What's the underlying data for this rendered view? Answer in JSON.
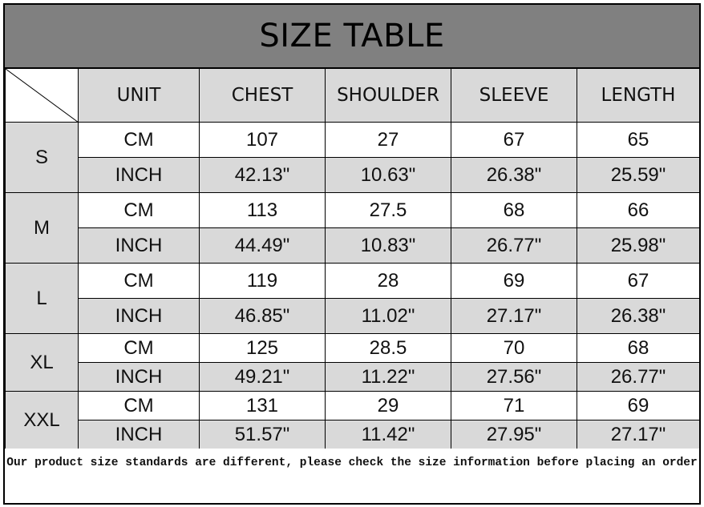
{
  "title": "SIZE TABLE",
  "headers": [
    "UNIT",
    "CHEST",
    "SHOULDER",
    "SLEEVE",
    "LENGTH"
  ],
  "sizes": [
    {
      "size": "S",
      "rows": [
        {
          "unit": "CM",
          "values": [
            "107",
            "27",
            "67",
            "65"
          ]
        },
        {
          "unit": "INCH",
          "values": [
            "42.13\"",
            "10.63\"",
            "26.38\"",
            "25.59\""
          ]
        }
      ]
    },
    {
      "size": "M",
      "rows": [
        {
          "unit": "CM",
          "values": [
            "113",
            "27.5",
            "68",
            "66"
          ]
        },
        {
          "unit": "INCH",
          "values": [
            "44.49\"",
            "10.83\"",
            "26.77\"",
            "25.98\""
          ]
        }
      ]
    },
    {
      "size": "L",
      "rows": [
        {
          "unit": "CM",
          "values": [
            "119",
            "28",
            "69",
            "67"
          ]
        },
        {
          "unit": "INCH",
          "values": [
            "46.85\"",
            "11.02\"",
            "27.17\"",
            "26.38\""
          ]
        }
      ]
    },
    {
      "size": "XL",
      "rows": [
        {
          "unit": "CM",
          "values": [
            "125",
            "28.5",
            "70",
            "68"
          ]
        },
        {
          "unit": "INCH",
          "values": [
            "49.21\"",
            "11.22\"",
            "27.56\"",
            "26.77\""
          ]
        }
      ]
    },
    {
      "size": "XXL",
      "rows": [
        {
          "unit": "CM",
          "values": [
            "131",
            "29",
            "71",
            "69"
          ]
        },
        {
          "unit": "INCH",
          "values": [
            "51.57\"",
            "11.42\"",
            "27.95\"",
            "27.17\""
          ]
        }
      ]
    }
  ],
  "footer": "Our product size standards are different, please check the size information before placing an order",
  "colors": {
    "title_bg": "#808080",
    "header_bg": "#d9d9d9",
    "inch_row_bg": "#d9d9d9"
  }
}
